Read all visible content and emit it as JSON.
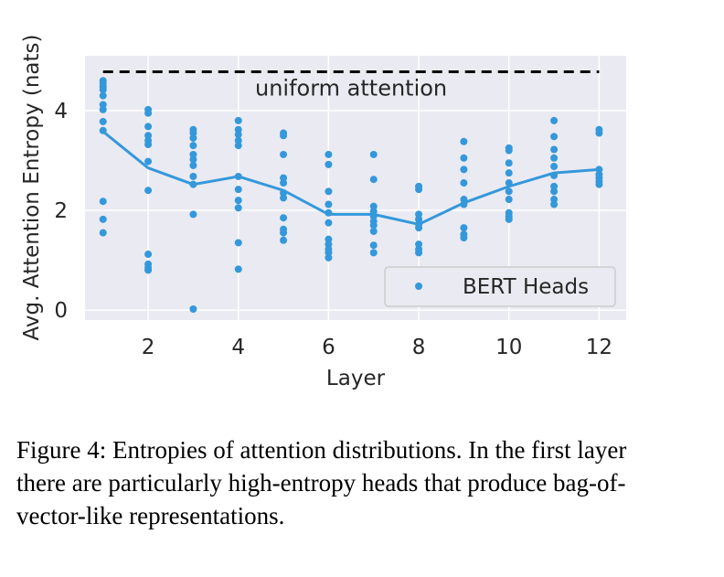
{
  "chart_data": {
    "type": "scatter",
    "xlabel": "Layer",
    "ylabel": "Avg. Attention Entropy (nats)",
    "xlim": [
      0.6,
      12.6
    ],
    "ylim": [
      -0.2,
      5.1
    ],
    "x_ticks": [
      2,
      4,
      6,
      8,
      10,
      12
    ],
    "y_ticks": [
      0,
      2,
      4
    ],
    "grid": true,
    "legend_position": "lower-right",
    "colors": {
      "points": "#3498db",
      "background": "#eaeaf2",
      "reference": "#000000"
    },
    "reference_line": {
      "label": "uniform attention",
      "y": 4.78,
      "x_range": [
        1,
        12
      ],
      "style": "dashed"
    },
    "series": [
      {
        "name": "BERT Heads",
        "points": [
          [
            1,
            4.6
          ],
          [
            1,
            4.55
          ],
          [
            1,
            4.48
          ],
          [
            1,
            4.42
          ],
          [
            1,
            4.3
          ],
          [
            1,
            4.12
          ],
          [
            1,
            4.02
          ],
          [
            1,
            3.78
          ],
          [
            1,
            3.6
          ],
          [
            1,
            2.18
          ],
          [
            1,
            1.82
          ],
          [
            1,
            1.55
          ],
          [
            2,
            4.02
          ],
          [
            2,
            3.95
          ],
          [
            2,
            3.68
          ],
          [
            2,
            3.5
          ],
          [
            2,
            3.4
          ],
          [
            2,
            3.32
          ],
          [
            2,
            2.98
          ],
          [
            2,
            2.4
          ],
          [
            2,
            1.12
          ],
          [
            2,
            0.92
          ],
          [
            2,
            0.85
          ],
          [
            2,
            0.8
          ],
          [
            3,
            3.62
          ],
          [
            3,
            3.55
          ],
          [
            3,
            3.45
          ],
          [
            3,
            3.3
          ],
          [
            3,
            3.12
          ],
          [
            3,
            3.02
          ],
          [
            3,
            2.9
          ],
          [
            3,
            2.68
          ],
          [
            3,
            2.52
          ],
          [
            3,
            1.92
          ],
          [
            3,
            0.02
          ],
          [
            4,
            3.8
          ],
          [
            4,
            3.62
          ],
          [
            4,
            3.52
          ],
          [
            4,
            3.4
          ],
          [
            4,
            3.3
          ],
          [
            4,
            2.68
          ],
          [
            4,
            2.42
          ],
          [
            4,
            2.2
          ],
          [
            4,
            2.05
          ],
          [
            4,
            1.35
          ],
          [
            4,
            0.82
          ],
          [
            5,
            3.55
          ],
          [
            5,
            3.5
          ],
          [
            5,
            3.12
          ],
          [
            5,
            2.65
          ],
          [
            5,
            2.55
          ],
          [
            5,
            2.35
          ],
          [
            5,
            2.25
          ],
          [
            5,
            1.85
          ],
          [
            5,
            1.62
          ],
          [
            5,
            1.55
          ],
          [
            5,
            1.4
          ],
          [
            6,
            3.12
          ],
          [
            6,
            2.92
          ],
          [
            6,
            2.38
          ],
          [
            6,
            2.12
          ],
          [
            6,
            1.95
          ],
          [
            6,
            1.75
          ],
          [
            6,
            1.42
          ],
          [
            6,
            1.32
          ],
          [
            6,
            1.22
          ],
          [
            6,
            1.15
          ],
          [
            6,
            1.05
          ],
          [
            7,
            3.12
          ],
          [
            7,
            2.62
          ],
          [
            7,
            2.08
          ],
          [
            7,
            1.98
          ],
          [
            7,
            1.88
          ],
          [
            7,
            1.78
          ],
          [
            7,
            1.7
          ],
          [
            7,
            1.58
          ],
          [
            7,
            1.3
          ],
          [
            7,
            1.15
          ],
          [
            8,
            2.48
          ],
          [
            8,
            2.42
          ],
          [
            8,
            1.92
          ],
          [
            8,
            1.82
          ],
          [
            8,
            1.72
          ],
          [
            8,
            1.65
          ],
          [
            8,
            1.32
          ],
          [
            8,
            1.22
          ],
          [
            8,
            1.15
          ],
          [
            9,
            3.38
          ],
          [
            9,
            3.05
          ],
          [
            9,
            2.82
          ],
          [
            9,
            2.55
          ],
          [
            9,
            2.22
          ],
          [
            9,
            2.12
          ],
          [
            9,
            1.65
          ],
          [
            9,
            1.52
          ],
          [
            9,
            1.45
          ],
          [
            10,
            3.25
          ],
          [
            10,
            3.2
          ],
          [
            10,
            2.95
          ],
          [
            10,
            2.75
          ],
          [
            10,
            2.55
          ],
          [
            10,
            2.38
          ],
          [
            10,
            2.22
          ],
          [
            10,
            1.95
          ],
          [
            10,
            1.88
          ],
          [
            10,
            1.82
          ],
          [
            11,
            3.8
          ],
          [
            11,
            3.48
          ],
          [
            11,
            3.22
          ],
          [
            11,
            3.05
          ],
          [
            11,
            2.88
          ],
          [
            11,
            2.7
          ],
          [
            11,
            2.48
          ],
          [
            11,
            2.38
          ],
          [
            11,
            2.22
          ],
          [
            11,
            2.12
          ],
          [
            12,
            3.62
          ],
          [
            12,
            3.55
          ],
          [
            12,
            2.82
          ],
          [
            12,
            2.72
          ],
          [
            12,
            2.65
          ],
          [
            12,
            2.58
          ],
          [
            12,
            2.52
          ]
        ]
      }
    ],
    "mean_line": {
      "x": [
        1,
        2,
        3,
        4,
        5,
        6,
        7,
        8,
        9,
        10,
        11,
        12
      ],
      "y": [
        3.58,
        2.85,
        2.52,
        2.68,
        2.4,
        1.92,
        1.92,
        1.72,
        2.15,
        2.48,
        2.75,
        2.82
      ]
    }
  },
  "caption": "Figure 4: Entropies of attention distributions. In the first layer there are particularly high-entropy heads that produce bag-of-vector-like representations."
}
